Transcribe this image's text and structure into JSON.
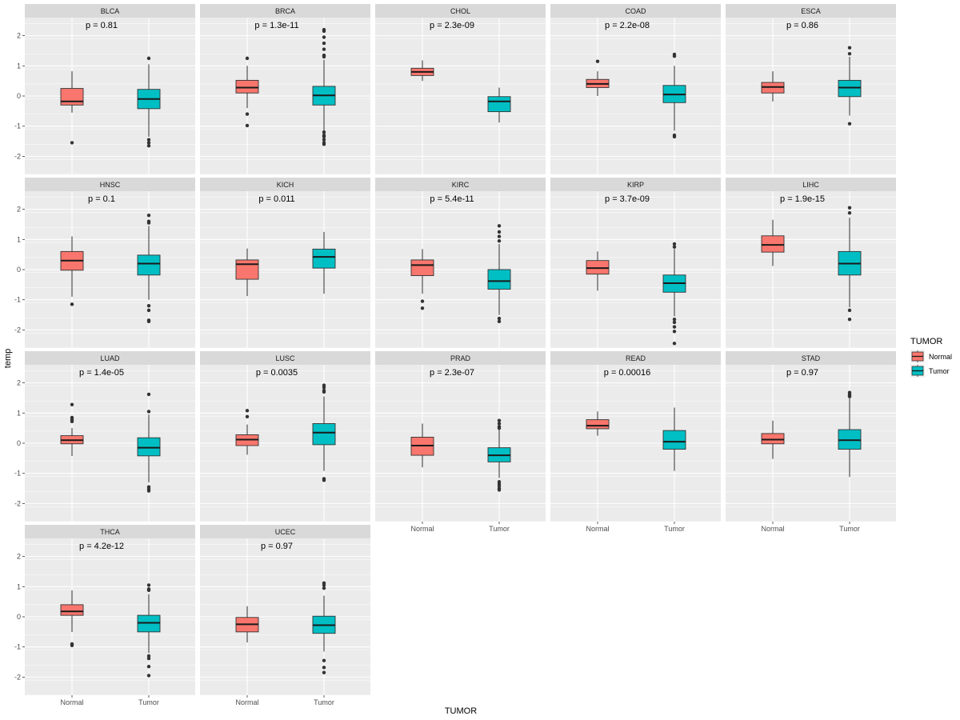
{
  "chart_data": {
    "type": "boxplot",
    "layout": "facet_wrap 4 rows x 5 columns",
    "xlabel": "TUMOR",
    "ylabel": "temp",
    "ylim": [
      -2.6,
      2.6
    ],
    "yticks": [
      -2,
      -1,
      0,
      1,
      2
    ],
    "groups": [
      "Normal",
      "Tumor"
    ],
    "colors": {
      "Normal": "#F8766D",
      "Tumor": "#00BFC4",
      "panel_bg": "#EBEBEB",
      "strip_bg": "#D9D9D9",
      "grid": "#FFFFFF"
    },
    "legend": {
      "title": "TUMOR",
      "items": [
        "Normal",
        "Tumor"
      ],
      "position": "right"
    },
    "panels": [
      {
        "name": "BLCA",
        "p": "p = 0.81",
        "Normal": {
          "low": -0.55,
          "q1": -0.3,
          "median": -0.18,
          "q3": 0.25,
          "high": 0.82,
          "outliers": [
            -1.55
          ]
        },
        "Tumor": {
          "low": -1.35,
          "q1": -0.42,
          "median": -0.1,
          "q3": 0.22,
          "high": 1.05,
          "outliers": [
            1.25,
            -1.45,
            -1.55,
            -1.65
          ]
        }
      },
      {
        "name": "BRCA",
        "p": "p = 1.3e-11",
        "Normal": {
          "low": -0.4,
          "q1": 0.1,
          "median": 0.28,
          "q3": 0.52,
          "high": 1.0,
          "outliers": [
            1.25,
            -0.6,
            -0.98
          ]
        },
        "Tumor": {
          "low": -1.15,
          "q1": -0.3,
          "median": 0.02,
          "q3": 0.32,
          "high": 1.2,
          "outliers": [
            2.2,
            2.15,
            1.95,
            1.75,
            1.55,
            1.35,
            1.3,
            -1.2,
            -1.3,
            -1.35,
            -1.45,
            -1.55,
            -1.6
          ]
        }
      },
      {
        "name": "CHOL",
        "p": "p = 2.3e-09",
        "Normal": {
          "low": 0.5,
          "q1": 0.68,
          "median": 0.8,
          "q3": 0.92,
          "high": 1.18,
          "outliers": []
        },
        "Tumor": {
          "low": -0.88,
          "q1": -0.52,
          "median": -0.18,
          "q3": -0.02,
          "high": 0.28,
          "outliers": []
        }
      },
      {
        "name": "COAD",
        "p": "p = 2.2e-08",
        "Normal": {
          "low": 0.0,
          "q1": 0.28,
          "median": 0.4,
          "q3": 0.55,
          "high": 0.82,
          "outliers": [
            1.15
          ]
        },
        "Tumor": {
          "low": -1.15,
          "q1": -0.22,
          "median": 0.05,
          "q3": 0.35,
          "high": 1.0,
          "outliers": [
            1.38,
            1.32,
            -1.3,
            -1.35
          ]
        }
      },
      {
        "name": "ESCA",
        "p": "p = 0.86",
        "Normal": {
          "low": -0.18,
          "q1": 0.1,
          "median": 0.3,
          "q3": 0.45,
          "high": 0.82,
          "outliers": []
        },
        "Tumor": {
          "low": -0.65,
          "q1": -0.02,
          "median": 0.28,
          "q3": 0.52,
          "high": 1.3,
          "outliers": [
            1.6,
            1.4,
            -0.92
          ]
        }
      },
      {
        "name": "HNSC",
        "p": "p = 0.1",
        "Normal": {
          "low": -0.9,
          "q1": -0.02,
          "median": 0.3,
          "q3": 0.6,
          "high": 1.1,
          "outliers": [
            -1.15
          ]
        },
        "Tumor": {
          "low": -1.0,
          "q1": -0.18,
          "median": 0.2,
          "q3": 0.48,
          "high": 1.45,
          "outliers": [
            1.8,
            1.6,
            1.55,
            -1.2,
            -1.35,
            -1.68,
            -1.72
          ]
        }
      },
      {
        "name": "KICH",
        "p": "p = 0.011",
        "Normal": {
          "low": -0.88,
          "q1": -0.32,
          "median": 0.18,
          "q3": 0.32,
          "high": 0.7,
          "outliers": []
        },
        "Tumor": {
          "low": -0.8,
          "q1": 0.05,
          "median": 0.42,
          "q3": 0.68,
          "high": 1.25,
          "outliers": []
        }
      },
      {
        "name": "KIRC",
        "p": "p = 5.4e-11",
        "Normal": {
          "low": -0.8,
          "q1": -0.2,
          "median": 0.15,
          "q3": 0.32,
          "high": 0.68,
          "outliers": [
            -1.05,
            -1.28
          ]
        },
        "Tumor": {
          "low": -1.5,
          "q1": -0.65,
          "median": -0.38,
          "q3": 0.0,
          "high": 0.85,
          "outliers": [
            1.45,
            1.25,
            1.1,
            0.95,
            -1.62,
            -1.72
          ]
        }
      },
      {
        "name": "KIRP",
        "p": "p = 3.7e-09",
        "Normal": {
          "low": -0.7,
          "q1": -0.15,
          "median": 0.05,
          "q3": 0.3,
          "high": 0.6,
          "outliers": []
        },
        "Tumor": {
          "low": -1.55,
          "q1": -0.75,
          "median": -0.45,
          "q3": -0.18,
          "high": 0.68,
          "outliers": [
            0.85,
            0.75,
            -1.65,
            -1.75,
            -1.9,
            -2.05,
            -2.45
          ]
        }
      },
      {
        "name": "LIHC",
        "p": "p = 1.9e-15",
        "Normal": {
          "low": 0.12,
          "q1": 0.58,
          "median": 0.82,
          "q3": 1.12,
          "high": 1.65,
          "outliers": []
        },
        "Tumor": {
          "low": -1.25,
          "q1": -0.18,
          "median": 0.2,
          "q3": 0.6,
          "high": 1.72,
          "outliers": [
            2.05,
            1.88,
            -1.35,
            -1.65
          ]
        }
      },
      {
        "name": "LUAD",
        "p": "p = 1.4e-05",
        "Normal": {
          "low": -0.42,
          "q1": -0.02,
          "median": 0.1,
          "q3": 0.25,
          "high": 0.5,
          "outliers": [
            1.28,
            0.85,
            0.78,
            0.72
          ]
        },
        "Tumor": {
          "low": -1.3,
          "q1": -0.42,
          "median": -0.15,
          "q3": 0.18,
          "high": 0.95,
          "outliers": [
            1.62,
            1.05,
            -1.45,
            -1.52,
            -1.58
          ]
        }
      },
      {
        "name": "LUSC",
        "p": "p = 0.0035",
        "Normal": {
          "low": -0.38,
          "q1": -0.08,
          "median": 0.12,
          "q3": 0.28,
          "high": 0.62,
          "outliers": [
            1.08,
            0.88
          ]
        },
        "Tumor": {
          "low": -0.92,
          "q1": -0.05,
          "median": 0.35,
          "q3": 0.65,
          "high": 1.55,
          "outliers": [
            1.92,
            1.85,
            1.75,
            1.7,
            -1.18,
            -1.23
          ]
        }
      },
      {
        "name": "PRAD",
        "p": "p = 2.3e-07",
        "Normal": {
          "low": -0.8,
          "q1": -0.4,
          "median": -0.08,
          "q3": 0.2,
          "high": 0.65,
          "outliers": []
        },
        "Tumor": {
          "low": -1.15,
          "q1": -0.62,
          "median": -0.4,
          "q3": -0.15,
          "high": 0.45,
          "outliers": [
            0.75,
            0.65,
            0.55,
            0.5,
            -1.28,
            -1.35,
            -1.42,
            -1.5,
            -1.55
          ]
        }
      },
      {
        "name": "READ",
        "p": "p = 0.00016",
        "Normal": {
          "low": 0.25,
          "q1": 0.48,
          "median": 0.58,
          "q3": 0.78,
          "high": 1.05,
          "outliers": []
        },
        "Tumor": {
          "low": -0.92,
          "q1": -0.2,
          "median": 0.05,
          "q3": 0.42,
          "high": 1.18,
          "outliers": []
        }
      },
      {
        "name": "STAD",
        "p": "p = 0.97",
        "Normal": {
          "low": -0.52,
          "q1": -0.02,
          "median": 0.12,
          "q3": 0.32,
          "high": 0.75,
          "outliers": []
        },
        "Tumor": {
          "low": -1.12,
          "q1": -0.2,
          "median": 0.1,
          "q3": 0.45,
          "high": 1.5,
          "outliers": [
            1.68,
            1.62,
            1.58,
            1.55
          ]
        }
      },
      {
        "name": "THCA",
        "p": "p = 4.2e-12",
        "Normal": {
          "low": -0.5,
          "q1": 0.05,
          "median": 0.18,
          "q3": 0.4,
          "high": 0.88,
          "outliers": [
            -0.9,
            -0.95
          ]
        },
        "Tumor": {
          "low": -1.2,
          "q1": -0.5,
          "median": -0.2,
          "q3": 0.05,
          "high": 0.75,
          "outliers": [
            1.05,
            0.92,
            0.88,
            -1.3,
            -1.38,
            -1.65,
            -1.95
          ]
        }
      },
      {
        "name": "UCEC",
        "p": "p = 0.97",
        "Normal": {
          "low": -0.85,
          "q1": -0.5,
          "median": -0.25,
          "q3": -0.02,
          "high": 0.35,
          "outliers": []
        },
        "Tumor": {
          "low": -1.15,
          "q1": -0.55,
          "median": -0.28,
          "q3": 0.02,
          "high": 0.7,
          "outliers": [
            1.12,
            1.05,
            0.95,
            -1.45,
            -1.68,
            -1.85
          ]
        }
      }
    ]
  }
}
